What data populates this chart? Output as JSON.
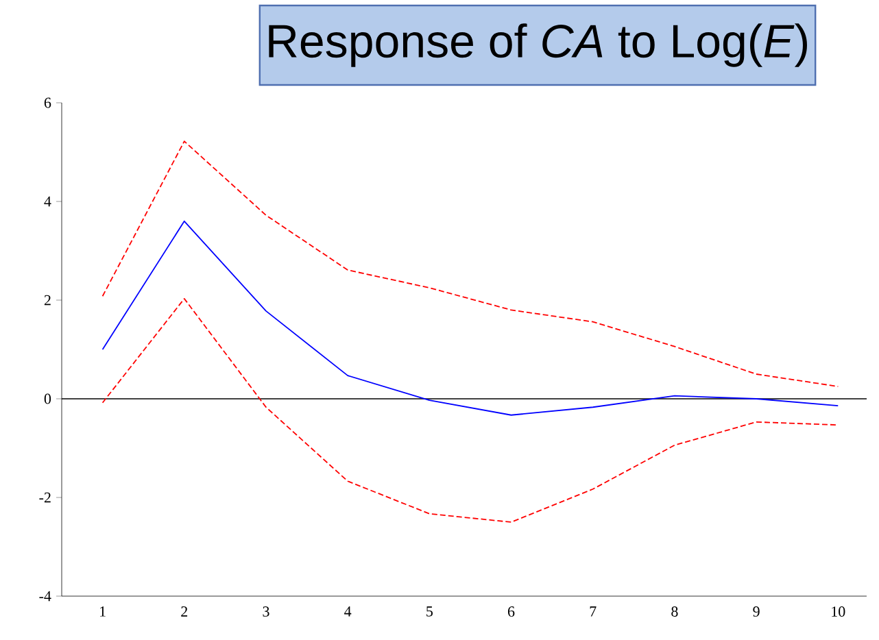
{
  "chart_data": {
    "type": "line",
    "title": "Response of *CA* to Log(*E*)",
    "categories": [
      "1",
      "2",
      "3",
      "4",
      "5",
      "6",
      "7",
      "8",
      "9",
      "10"
    ],
    "series": [
      {
        "color": "#0000ff",
        "line_style": "solid",
        "values": [
          1.0,
          3.6,
          1.78,
          0.47,
          -0.03,
          -0.33,
          -0.17,
          0.06,
          0.0,
          -0.14
        ]
      },
      {
        "color": "#ff0000",
        "line_style": "dashed",
        "values": [
          2.08,
          5.22,
          3.72,
          2.61,
          2.25,
          1.8,
          1.56,
          1.06,
          0.5,
          0.25
        ]
      },
      {
        "color": "#ff0000",
        "line_style": "dashed",
        "values": [
          -0.08,
          2.03,
          -0.17,
          -1.67,
          -2.33,
          -2.5,
          -1.83,
          -0.94,
          -0.47,
          -0.53
        ]
      }
    ],
    "ylim": [
      -4,
      6
    ],
    "yticks": [
      -4,
      -2,
      0,
      2,
      4,
      6
    ],
    "ref_lines": [
      {
        "axis": "y",
        "value": 0,
        "color": "#000000"
      }
    ]
  }
}
